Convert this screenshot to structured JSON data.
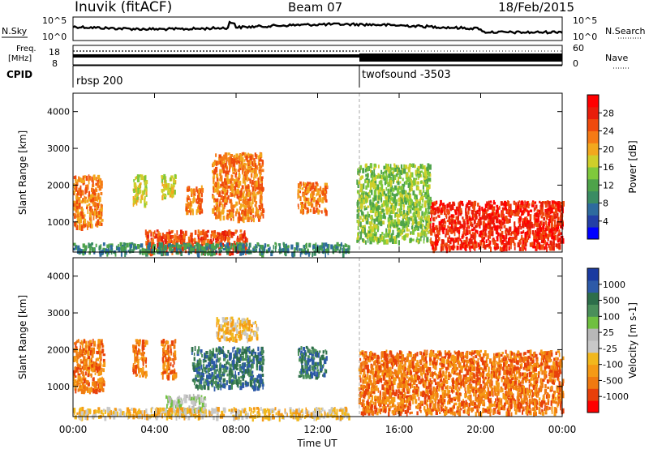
{
  "header": {
    "station": "Inuvik (fitACF)",
    "beam": "Beam 07",
    "date": "18/Feb/2015"
  },
  "top_panels": {
    "nsky_label": "N.Sky",
    "nsky_ticks": [
      "10^5",
      "10^0"
    ],
    "nsearch_label": "N.Search",
    "freq_label_1": "Freq.",
    "freq_label_2": "[MHz]",
    "freq_ticks": [
      "18",
      "8"
    ],
    "nave_label": "Nave",
    "nave_ticks": [
      "60",
      "0"
    ],
    "cpid_label": "CPID",
    "cpid_segments": [
      {
        "name": "rbsp 200",
        "start_hour": 0
      },
      {
        "name": "twofsound -3503",
        "start_hour": 14
      }
    ]
  },
  "colors": {
    "power": [
      "#0000ff",
      "#233fa6",
      "#2e6b9e",
      "#3a8c63",
      "#4ea34a",
      "#7fc93c",
      "#cfcf2a",
      "#f2a81d",
      "#f57a15",
      "#ef4a0d",
      "#e81d0a",
      "#ff0000"
    ],
    "velocity": [
      "#1a3aa0",
      "#2d5aa8",
      "#2d6e4a",
      "#4a8f5a",
      "#6fc040",
      "#b8b8b8",
      "#c8c8c8",
      "#f2b81d",
      "#f59a15",
      "#f07a10",
      "#e8400a",
      "#ff0000"
    ]
  },
  "chart_data": [
    {
      "type": "heatmap",
      "panel": "power",
      "ylabel": "Slant Range [km]",
      "yticks": [
        1000,
        2000,
        3000,
        4000
      ],
      "ylim": [
        180,
        4500
      ],
      "xlim_hours": [
        0,
        24
      ],
      "colorbar_label": "Power [dB]",
      "colorbar_ticks": [
        "4",
        "8",
        "12",
        "16",
        "20",
        "24",
        "28"
      ],
      "colorbar_range": [
        0,
        32
      ],
      "echo_regions": [
        {
          "start_hour": 0.0,
          "end_hour": 1.4,
          "range_min_km": 900,
          "range_max_km": 2300,
          "level_db": 24
        },
        {
          "start_hour": 2.9,
          "end_hour": 3.6,
          "range_min_km": 1500,
          "range_max_km": 2300,
          "level_db": 18
        },
        {
          "start_hour": 4.3,
          "end_hour": 5.0,
          "range_min_km": 1700,
          "range_max_km": 2300,
          "level_db": 16
        },
        {
          "start_hour": 5.5,
          "end_hour": 6.3,
          "range_min_km": 1300,
          "range_max_km": 2000,
          "level_db": 24
        },
        {
          "start_hour": 6.8,
          "end_hour": 9.3,
          "range_min_km": 1100,
          "range_max_km": 2900,
          "level_db": 22
        },
        {
          "start_hour": 11.0,
          "end_hour": 12.4,
          "range_min_km": 1300,
          "range_max_km": 2100,
          "level_db": 22
        },
        {
          "start_hour": 13.9,
          "end_hour": 17.5,
          "range_min_km": 500,
          "range_max_km": 2600,
          "level_db": 14
        },
        {
          "start_hour": 17.5,
          "end_hour": 24.0,
          "range_min_km": 300,
          "range_max_km": 1600,
          "level_db": 28
        },
        {
          "start_hour": 3.5,
          "end_hour": 8.5,
          "range_min_km": 200,
          "range_max_km": 800,
          "level_db": 26
        },
        {
          "start_hour": 0.0,
          "end_hour": 13.5,
          "range_min_km": 180,
          "range_max_km": 450,
          "level_db": 10
        }
      ]
    },
    {
      "type": "heatmap",
      "panel": "velocity",
      "ylabel": "Slant Range [km]",
      "yticks": [
        1000,
        2000,
        3000,
        4000
      ],
      "ylim": [
        180,
        4500
      ],
      "xlim_hours": [
        0,
        24
      ],
      "xticks": [
        "00:00",
        "04:00",
        "08:00",
        "12:00",
        "16:00",
        "20:00",
        "00:00"
      ],
      "xlabel": "Time UT",
      "colorbar_label": "Velocity [m s-1]",
      "colorbar_ticks": [
        "1000",
        "500",
        "100",
        "25",
        "-25",
        "-100",
        "-500",
        "-1000"
      ],
      "echo_regions": [
        {
          "start_hour": 0.0,
          "end_hour": 1.5,
          "range_min_km": 900,
          "range_max_km": 2300,
          "level_ms": -200
        },
        {
          "start_hour": 2.9,
          "end_hour": 3.6,
          "range_min_km": 1300,
          "range_max_km": 2300,
          "level_ms": -150
        },
        {
          "start_hour": 4.3,
          "end_hour": 5.0,
          "range_min_km": 1300,
          "range_max_km": 2300,
          "level_ms": -120
        },
        {
          "start_hour": 5.8,
          "end_hour": 9.3,
          "range_min_km": 1000,
          "range_max_km": 2100,
          "level_ms": 150
        },
        {
          "start_hour": 7.0,
          "end_hour": 9.0,
          "range_min_km": 2300,
          "range_max_km": 2900,
          "level_ms": -30
        },
        {
          "start_hour": 11.0,
          "end_hour": 12.4,
          "range_min_km": 1300,
          "range_max_km": 2100,
          "level_ms": 150
        },
        {
          "start_hour": 14.0,
          "end_hour": 24.0,
          "range_min_km": 300,
          "range_max_km": 2000,
          "level_ms": -250
        },
        {
          "start_hour": 4.5,
          "end_hour": 6.5,
          "range_min_km": 300,
          "range_max_km": 800,
          "level_ms": 0
        },
        {
          "start_hour": 0.0,
          "end_hour": 13.5,
          "range_min_km": 180,
          "range_max_km": 450,
          "level_ms": -80
        }
      ]
    }
  ]
}
